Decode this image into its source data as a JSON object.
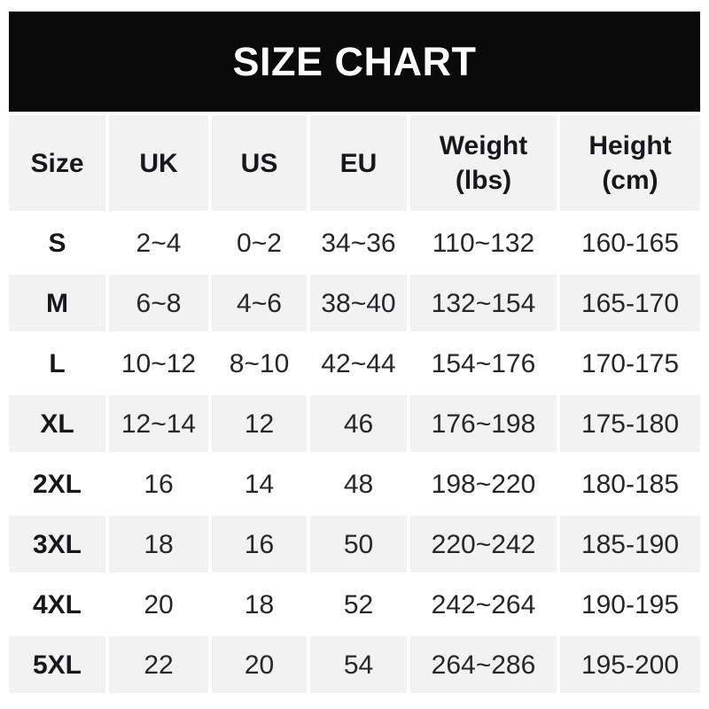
{
  "title": "SIZE CHART",
  "colors": {
    "banner_bg": "#0a0a0a",
    "banner_text": "#ffffff",
    "cell_gray": "#f2f2f2",
    "cell_white": "#ffffff",
    "text": "#26272b",
    "text_strong": "#17181c",
    "page_bg": "#ffffff"
  },
  "table": {
    "columns": [
      "Size",
      "UK",
      "US",
      "EU",
      "Weight\n(lbs)",
      "Height\n(cm)"
    ],
    "rows": [
      [
        "S",
        "2~4",
        "0~2",
        "34~36",
        "110~132",
        "160-165"
      ],
      [
        "M",
        "6~8",
        "4~6",
        "38~40",
        "132~154",
        "165-170"
      ],
      [
        "L",
        "10~12",
        "8~10",
        "42~44",
        "154~176",
        "170-175"
      ],
      [
        "XL",
        "12~14",
        "12",
        "46",
        "176~198",
        "175-180"
      ],
      [
        "2XL",
        "16",
        "14",
        "48",
        "198~220",
        "180-185"
      ],
      [
        "3XL",
        "18",
        "16",
        "50",
        "220~242",
        "185-190"
      ],
      [
        "4XL",
        "20",
        "18",
        "52",
        "242~264",
        "190-195"
      ],
      [
        "5XL",
        "22",
        "20",
        "54",
        "264~286",
        "195-200"
      ]
    ]
  },
  "chart_data": {
    "type": "table",
    "title": "SIZE CHART",
    "columns": [
      "Size",
      "UK",
      "US",
      "EU",
      "Weight (lbs)",
      "Height (cm)"
    ],
    "rows": [
      [
        "S",
        "2~4",
        "0~2",
        "34~36",
        "110~132",
        "160-165"
      ],
      [
        "M",
        "6~8",
        "4~6",
        "38~40",
        "132~154",
        "165-170"
      ],
      [
        "L",
        "10~12",
        "8~10",
        "42~44",
        "154~176",
        "170-175"
      ],
      [
        "XL",
        "12~14",
        "12",
        "46",
        "176~198",
        "175-180"
      ],
      [
        "2XL",
        "16",
        "14",
        "48",
        "198~220",
        "180-185"
      ],
      [
        "3XL",
        "18",
        "16",
        "50",
        "220~242",
        "185-190"
      ],
      [
        "4XL",
        "20",
        "18",
        "52",
        "242~264",
        "190-195"
      ],
      [
        "5XL",
        "22",
        "20",
        "54",
        "264~286",
        "195-200"
      ]
    ],
    "layout": {
      "header_background": "#f2f2f2",
      "row_alternation": [
        "#ffffff",
        "#f2f2f2"
      ],
      "grid": "white 4px gutters between cells"
    }
  }
}
